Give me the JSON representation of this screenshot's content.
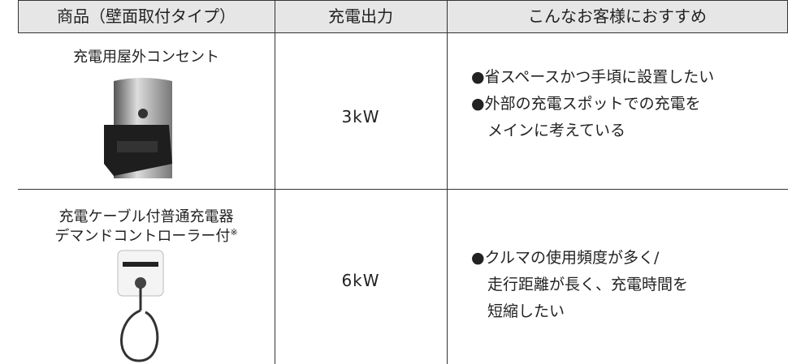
{
  "table": {
    "header": [
      "商品（壁面取付タイプ）",
      "充電出力",
      "こんなお客様におすすめ"
    ],
    "rows": [
      {
        "product": [
          "充電用屋外コンセント"
        ],
        "note": null,
        "output": "3kW",
        "recommend": [
          "●省スペースかつ手頃に設置したい",
          "●外部の充電スポットでの充電を",
          "メインに考えている"
        ]
      },
      {
        "product": [
          "充電ケーブル付普通充電器",
          "デマンドコントローラー付"
        ],
        "note": "※",
        "output": "6kW",
        "recommend": [
          "●クルマの使用頻度が多く/",
          "走行距離が長く、充電時間を",
          "短縮したい"
        ]
      }
    ]
  }
}
